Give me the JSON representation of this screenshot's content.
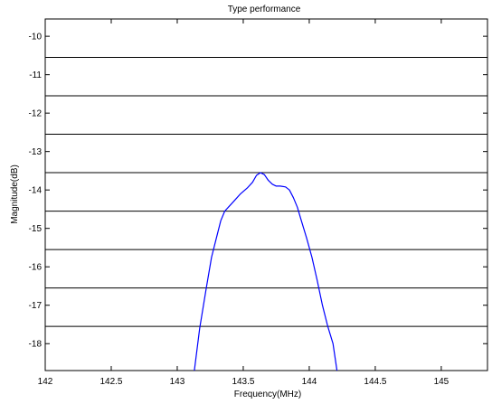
{
  "chart_data": {
    "type": "line",
    "title": "Type performance",
    "xlabel": "Frequency(MHz)",
    "ylabel": "Magnitude(dB)",
    "xlim": [
      142,
      145.35
    ],
    "ylim": [
      -18.7,
      -9.55
    ],
    "x_ticks": [
      142,
      142.5,
      143,
      143.5,
      144,
      144.5,
      145
    ],
    "x_tick_labels": [
      "142",
      "142.5",
      "143",
      "143.5",
      "144",
      "144.5",
      "145"
    ],
    "y_ticks": [
      -10,
      -11,
      -12,
      -13,
      -14,
      -15,
      -16,
      -17,
      -18
    ],
    "y_tick_labels": [
      "-10",
      "-11",
      "-12",
      "-13",
      "-14",
      "-15",
      "-16",
      "-17",
      "-18"
    ],
    "grid": false,
    "reference_lines": [
      -10.55,
      -11.55,
      -12.55,
      -13.55,
      -14.55,
      -15.55,
      -16.55,
      -17.55
    ],
    "line_color": "#0000ff",
    "series": [
      {
        "x": [
          143.13,
          143.17,
          143.22,
          143.26,
          143.3,
          143.33,
          143.36,
          143.4,
          143.44,
          143.48,
          143.53,
          143.57,
          143.6,
          143.63,
          143.66,
          143.69,
          143.72,
          143.75,
          143.78,
          143.82,
          143.85,
          143.88,
          143.91,
          143.94,
          143.98,
          144.02,
          144.06,
          144.1,
          144.14,
          144.18,
          144.21
        ],
        "y": [
          -18.7,
          -17.6,
          -16.55,
          -15.75,
          -15.2,
          -14.8,
          -14.55,
          -14.4,
          -14.25,
          -14.1,
          -13.95,
          -13.8,
          -13.62,
          -13.55,
          -13.6,
          -13.75,
          -13.85,
          -13.9,
          -13.9,
          -13.92,
          -14.0,
          -14.2,
          -14.45,
          -14.8,
          -15.25,
          -15.75,
          -16.35,
          -17.0,
          -17.55,
          -18.0,
          -18.7
        ]
      }
    ]
  }
}
